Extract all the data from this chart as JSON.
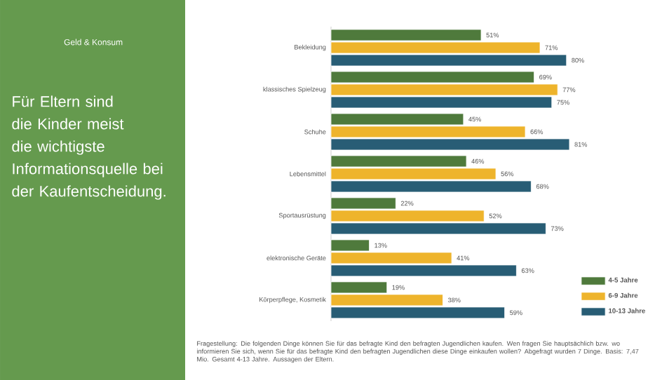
{
  "chart_data": {
    "type": "bar",
    "orientation": "horizontal",
    "title": "Für Eltern sind die Kinder meist die wichtigste Informationsquelle bei der Kaufentscheidung.",
    "subtitle": "Geld & Konsum",
    "categories": [
      "Bekleidung",
      "klassisches Spielzeug",
      "Schuhe",
      "Lebensmittel",
      "Sportausrüstung",
      "elektronische Geräte",
      "Körperpflege, Kosmetik"
    ],
    "series": [
      {
        "name": "4-5 Jahre",
        "color": "#4f7a3c",
        "values": [
          51,
          69,
          45,
          46,
          22,
          13,
          19
        ],
        "value_labels": [
          "51%",
          "69%",
          "45%",
          "46%",
          "22%",
          "13%",
          "19%"
        ]
      },
      {
        "name": "6-9 Jahre",
        "color": "#eeb42c",
        "values": [
          71,
          77,
          66,
          56,
          52,
          41,
          38
        ],
        "value_labels": [
          "71%",
          "77%",
          "66%",
          "56%",
          "52%",
          "41%",
          "38%"
        ]
      },
      {
        "name": "10-13 Jahre",
        "color": "#285d75",
        "values": [
          80,
          75,
          81,
          68,
          73,
          63,
          59
        ],
        "value_labels": [
          "80%",
          "75%",
          "81%",
          "68%",
          "73%",
          "63%",
          "59%"
        ]
      }
    ],
    "tick_labels": "y",
    "legend": "bottom right",
    "annotations": [
      "Fragestellung: Die folgenden Dinge können Sie für das befragte Kind den befragten Jugendlichen kaufen. Wen fragen Sie hauptsächlich bzw. wo informieren Sie sich, wenn Sie für das befragte Kind den befragten Jugendlichen diese Dinge einkaufen wollen? Abgefragt wurden 7 Dinge. Basis: 7,47 Mio. Gesamt 4-13 Jahre. Aussagen der Eltern."
    ]
  }
}
